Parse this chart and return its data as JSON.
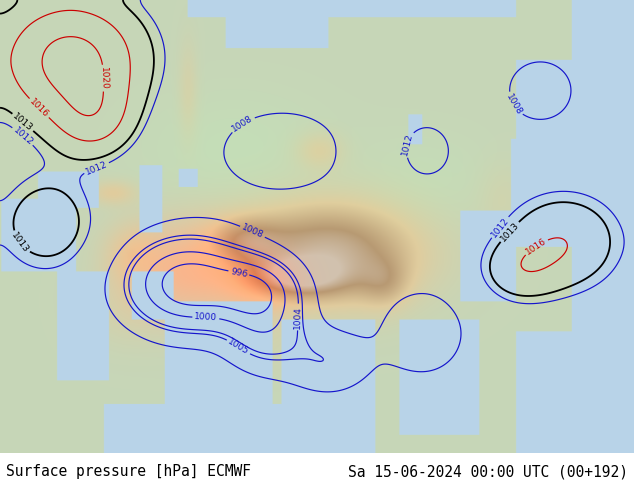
{
  "title_left": "Surface pressure [hPa] ECMWF",
  "title_right": "Sa 15-06-2024 00:00 UTC (00+192)",
  "caption_fontsize": 10.5,
  "caption_color": "#000000",
  "background_color": "#ffffff",
  "fig_width": 6.34,
  "fig_height": 4.9,
  "dpi": 100,
  "map_extent": [
    20,
    155,
    0,
    75
  ],
  "ocean_color": "#b8d4e8",
  "land_base_color": [
    0.78,
    0.84,
    0.72
  ],
  "land_warm_color": [
    0.88,
    0.8,
    0.62
  ],
  "land_mountain_color": [
    0.72,
    0.6,
    0.45
  ],
  "land_hot_color": [
    0.85,
    0.55,
    0.35
  ],
  "contour_blue_color": "#1515cc",
  "contour_black_color": "#000000",
  "contour_red_color": "#cc0000",
  "contour_linewidth": 0.85,
  "contour_black_linewidth": 1.3,
  "label_fontsize": 6.5
}
